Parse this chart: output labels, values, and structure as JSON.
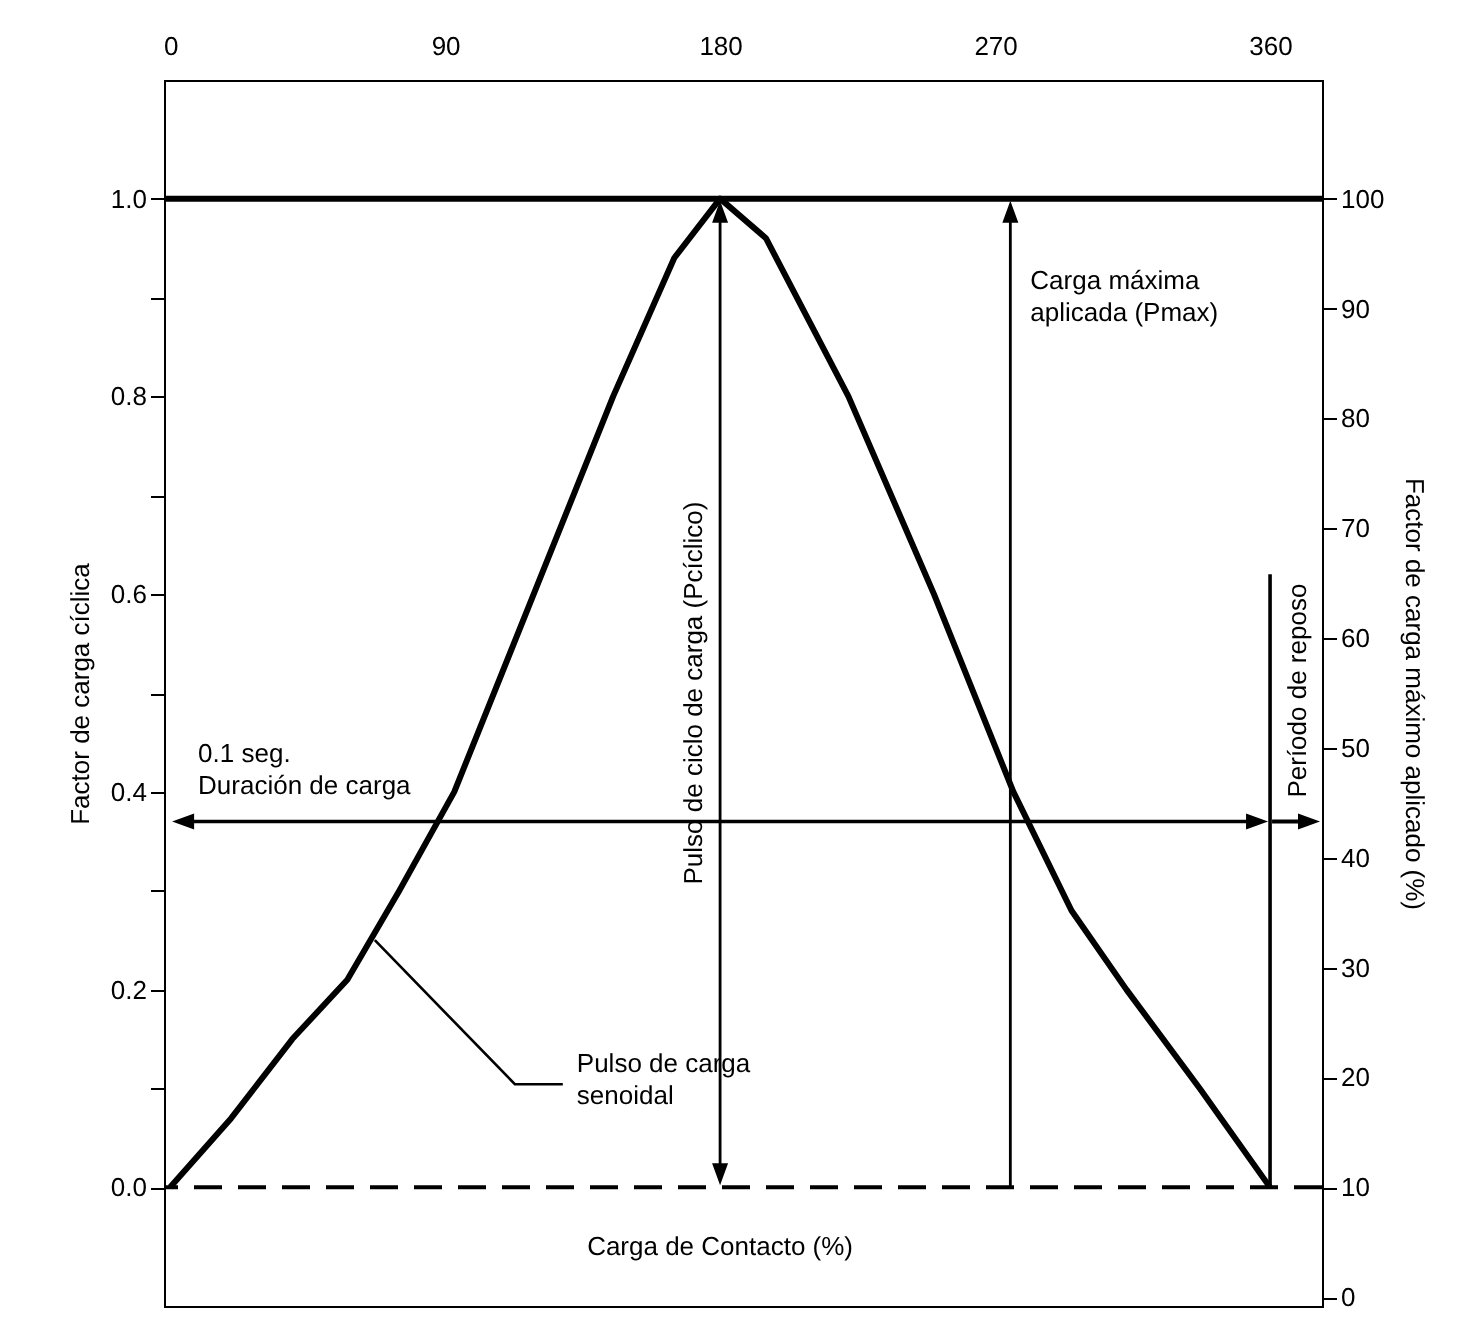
{
  "chart_data": {
    "type": "line",
    "xlim": [
      -2,
      377
    ],
    "xticks": [
      0,
      90,
      180,
      270,
      360
    ],
    "ylim": [
      -0.12,
      1.12
    ],
    "yticks": [
      {
        "value": 0,
        "label": "0.0"
      },
      {
        "value": 0.1,
        "label": null
      },
      {
        "value": 0.2,
        "label": "0.2"
      },
      {
        "value": 0.3,
        "label": null
      },
      {
        "value": 0.4,
        "label": "0.4"
      },
      {
        "value": 0.5,
        "label": null
      },
      {
        "value": 0.6,
        "label": "0.6"
      },
      {
        "value": 0.7,
        "label": null
      },
      {
        "value": 0.8,
        "label": "0.8"
      },
      {
        "value": 0.9,
        "label": null
      },
      {
        "value": 1,
        "label": "1.0"
      }
    ],
    "y2lim": [
      -0.8,
      110.8
    ],
    "y2ticks": [
      0,
      10,
      20,
      30,
      40,
      50,
      60,
      70,
      80,
      90,
      100
    ],
    "ylabel": "Factor de carga cíclica",
    "y2label": "Factor de carga máximo aplicado (%)",
    "grid": false,
    "marker": "none",
    "line_style": "solid",
    "series": [
      {
        "color": "#000000",
        "x": [
          0,
          20,
          40,
          58,
          75,
          93,
          119,
          145,
          165,
          180,
          195,
          222,
          250,
          276,
          295,
          313,
          337,
          360
        ],
        "values": [
          0,
          0.07,
          0.15,
          0.21,
          0.3,
          0.4,
          0.6,
          0.8,
          0.94,
          1,
          0.96,
          0.8,
          0.6,
          0.4,
          0.28,
          0.2,
          0.1,
          0
        ]
      },
      {
        "color": "#000000",
        "x": [
          360,
          360
        ],
        "values": [
          0,
          0.62
        ]
      }
    ],
    "ref_lines": [
      {
        "axis": "y",
        "value": 1,
        "color": "#000000",
        "line_style": "solid"
      },
      {
        "axis": "y",
        "value": 0,
        "color": "#000000",
        "line_style": "dashed"
      }
    ],
    "annotations": [
      {
        "text": "Carga máxima aplicada (Pmax)",
        "x": 275,
        "y": 1
      },
      "Pulso de ciclo de carga (Pcíclico)",
      "0.1 seg. Duración de carga",
      "Período de reposo",
      {
        "text": "Pulso de carga senoidal",
        "x": 67,
        "y": 0.25
      },
      "Carga de Contacto (%)"
    ]
  }
}
